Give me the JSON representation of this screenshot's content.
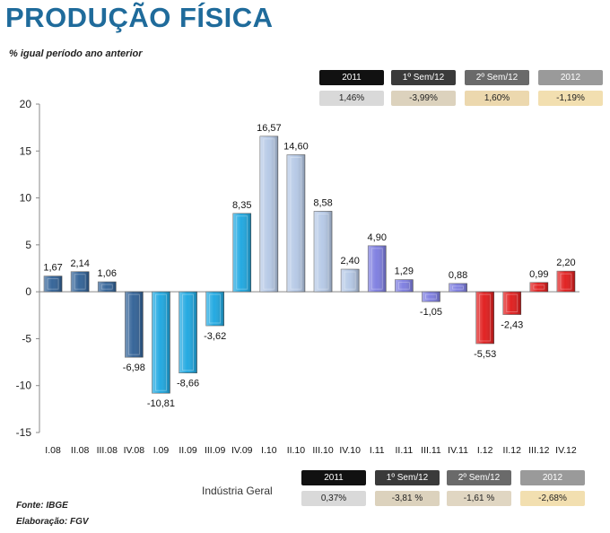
{
  "title": "PRODUÇÃO FÍSICA",
  "subtitle": "% igual período  ano anterior",
  "top_summary": [
    {
      "label": "2011",
      "value": "1,46%",
      "hdr_color": "#111111",
      "val_color": "#d9d9d9"
    },
    {
      "label": "1º Sem/12",
      "value": "-3,99%",
      "hdr_color": "#3a3a3a",
      "val_color": "#dcd2bd"
    },
    {
      "label": "2º Sem/12",
      "value": "1,60%",
      "hdr_color": "#6a6a6a",
      "val_color": "#ecd8ae"
    },
    {
      "label": "2012",
      "value": "-1,19%",
      "hdr_color": "#9a9a9a",
      "val_color": "#f2dfb0"
    }
  ],
  "bottom_summary": {
    "label": "Indústria Geral",
    "items": [
      {
        "label": "2011",
        "value": "0,37%",
        "hdr_color": "#111111",
        "val_color": "#d9d9d9"
      },
      {
        "label": "1º Sem/12",
        "value": "-3,81 %",
        "hdr_color": "#3a3a3a",
        "val_color": "#dcd2bd"
      },
      {
        "label": "2º Sem/12",
        "value": "-1,61 %",
        "hdr_color": "#6a6a6a",
        "val_color": "#e0d6c2"
      },
      {
        "label": "2012",
        "value": "-2,68%",
        "hdr_color": "#9a9a9a",
        "val_color": "#f2dfb0"
      }
    ]
  },
  "footer": {
    "source": "Fonte: IBGE",
    "elaboration": "Elaboração:  FGV"
  },
  "chart_data": {
    "type": "bar",
    "title": "",
    "xlabel": "",
    "ylabel": "",
    "ylim": [
      -15,
      20
    ],
    "yticks": [
      -15,
      -10,
      -5,
      0,
      5,
      10,
      15,
      20
    ],
    "categories": [
      "I.08",
      "II.08",
      "III.08",
      "IV.08",
      "I.09",
      "II.09",
      "III.09",
      "IV.09",
      "I.10",
      "II.10",
      "III.10",
      "IV.10",
      "I.11",
      "II.11",
      "III.11",
      "IV.11",
      "I.12",
      "II.12",
      "III.12",
      "IV.12"
    ],
    "values": [
      1.67,
      2.14,
      1.06,
      -6.98,
      -10.81,
      -8.66,
      -3.62,
      8.35,
      16.57,
      14.6,
      8.58,
      2.4,
      4.9,
      1.29,
      -1.05,
      0.88,
      -5.53,
      -2.43,
      0.99,
      2.2
    ],
    "value_labels": [
      "1,67",
      "2,14",
      "1,06",
      "-6,98",
      "-10,81",
      "-8,66",
      "-3,62",
      "8,35",
      "16,57",
      "14,60",
      "8,58",
      "2,40",
      "4,90",
      "1,29",
      "-1,05",
      "0,88",
      "-5,53",
      "-2,43",
      "0,99",
      "2,20"
    ],
    "colors": [
      "#2e5f95",
      "#2e5f95",
      "#2e5f95",
      "#2e5f95",
      "#1aa6e0",
      "#1aa6e0",
      "#1aa6e0",
      "#1aa6e0",
      "#b4c8e6",
      "#b4c8e6",
      "#b4c8e6",
      "#b4c8e6",
      "#7b7be0",
      "#7b7be0",
      "#7b7be0",
      "#7b7be0",
      "#e01818",
      "#e01818",
      "#e01818",
      "#e01818"
    ],
    "grid": false,
    "legend": "none"
  }
}
